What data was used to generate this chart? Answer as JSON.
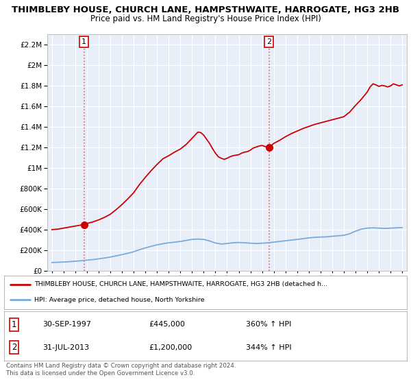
{
  "title": "THIMBLEBY HOUSE, CHURCH LANE, HAMPSTHWAITE, HARROGATE, HG3 2HB",
  "subtitle": "Price paid vs. HM Land Registry's House Price Index (HPI)",
  "title_fontsize": 9.5,
  "subtitle_fontsize": 8.5,
  "sale1_date": 1997.75,
  "sale1_price": 445000,
  "sale1_label": "1",
  "sale2_date": 2013.58,
  "sale2_price": 1200000,
  "sale2_label": "2",
  "legend_line1": "THIMBLEBY HOUSE, CHURCH LANE, HAMPSTHWAITE, HARROGATE, HG3 2HB (detached h...",
  "legend_line2": "HPI: Average price, detached house, North Yorkshire",
  "table_row1": [
    "1",
    "30-SEP-1997",
    "£445,000",
    "360% ↑ HPI"
  ],
  "table_row2": [
    "2",
    "31-JUL-2013",
    "£1,200,000",
    "344% ↑ HPI"
  ],
  "footer": "Contains HM Land Registry data © Crown copyright and database right 2024.\nThis data is licensed under the Open Government Licence v3.0.",
  "ylim_max": 2300000,
  "xlim_start": 1994.6,
  "xlim_end": 2025.4,
  "price_line_color": "#cc0000",
  "hpi_line_color": "#7aaadd",
  "background_color": "#ffffff",
  "grid_color": "#cccccc",
  "hpi_x": [
    1995,
    1995.5,
    1996,
    1996.5,
    1997,
    1997.5,
    1998,
    1998.5,
    1999,
    1999.5,
    2000,
    2000.5,
    2001,
    2001.5,
    2002,
    2002.5,
    2003,
    2003.5,
    2004,
    2004.5,
    2005,
    2005.5,
    2006,
    2006.5,
    2007,
    2007.5,
    2008,
    2008.5,
    2009,
    2009.5,
    2010,
    2010.5,
    2011,
    2011.5,
    2012,
    2012.5,
    2013,
    2013.5,
    2014,
    2014.5,
    2015,
    2015.5,
    2016,
    2016.5,
    2017,
    2017.5,
    2018,
    2018.5,
    2019,
    2019.5,
    2020,
    2020.5,
    2021,
    2021.5,
    2022,
    2022.5,
    2023,
    2023.5,
    2024,
    2024.5,
    2025
  ],
  "hpi_y": [
    80000,
    82000,
    85000,
    88000,
    93000,
    97000,
    103000,
    108000,
    116000,
    124000,
    133000,
    145000,
    157000,
    170000,
    185000,
    205000,
    222000,
    238000,
    252000,
    263000,
    272000,
    278000,
    285000,
    295000,
    305000,
    308000,
    305000,
    290000,
    270000,
    260000,
    265000,
    272000,
    275000,
    272000,
    268000,
    265000,
    268000,
    272000,
    278000,
    285000,
    292000,
    298000,
    305000,
    312000,
    320000,
    325000,
    328000,
    330000,
    335000,
    340000,
    345000,
    360000,
    385000,
    405000,
    415000,
    418000,
    415000,
    412000,
    415000,
    418000,
    420000
  ],
  "red_x": [
    1995,
    1995.5,
    1996,
    1996.5,
    1997,
    1997.5,
    1998,
    1998.5,
    1999,
    1999.5,
    2000,
    2000.5,
    2001,
    2001.5,
    2002,
    2002.5,
    2003,
    2003.5,
    2004,
    2004.5,
    2005,
    2005.5,
    2006,
    2006.5,
    2007,
    2007.25,
    2007.5,
    2007.75,
    2008,
    2008.25,
    2008.5,
    2008.75,
    2009,
    2009.25,
    2009.5,
    2009.75,
    2010,
    2010.25,
    2010.5,
    2010.75,
    2011,
    2011.25,
    2011.5,
    2011.75,
    2012,
    2012.25,
    2012.5,
    2012.75,
    2013,
    2013.25,
    2013.58,
    2013.75,
    2014,
    2014.5,
    2015,
    2015.5,
    2016,
    2016.5,
    2017,
    2017.5,
    2018,
    2018.5,
    2019,
    2019.5,
    2020,
    2020.5,
    2021,
    2021.5,
    2022,
    2022.25,
    2022.5,
    2022.75,
    2023,
    2023.25,
    2023.5,
    2023.75,
    2024,
    2024.25,
    2024.5,
    2024.75,
    2025
  ],
  "red_y": [
    400000,
    405000,
    415000,
    425000,
    435000,
    445000,
    460000,
    475000,
    495000,
    520000,
    550000,
    595000,
    645000,
    700000,
    760000,
    840000,
    910000,
    975000,
    1035000,
    1090000,
    1120000,
    1155000,
    1185000,
    1230000,
    1290000,
    1320000,
    1350000,
    1345000,
    1320000,
    1280000,
    1240000,
    1190000,
    1145000,
    1110000,
    1095000,
    1085000,
    1095000,
    1110000,
    1120000,
    1125000,
    1130000,
    1145000,
    1155000,
    1160000,
    1175000,
    1195000,
    1205000,
    1215000,
    1220000,
    1210000,
    1200000,
    1215000,
    1240000,
    1270000,
    1305000,
    1335000,
    1360000,
    1385000,
    1405000,
    1425000,
    1440000,
    1455000,
    1470000,
    1485000,
    1500000,
    1545000,
    1610000,
    1670000,
    1740000,
    1790000,
    1820000,
    1810000,
    1795000,
    1805000,
    1800000,
    1790000,
    1800000,
    1820000,
    1810000,
    1800000,
    1810000
  ]
}
